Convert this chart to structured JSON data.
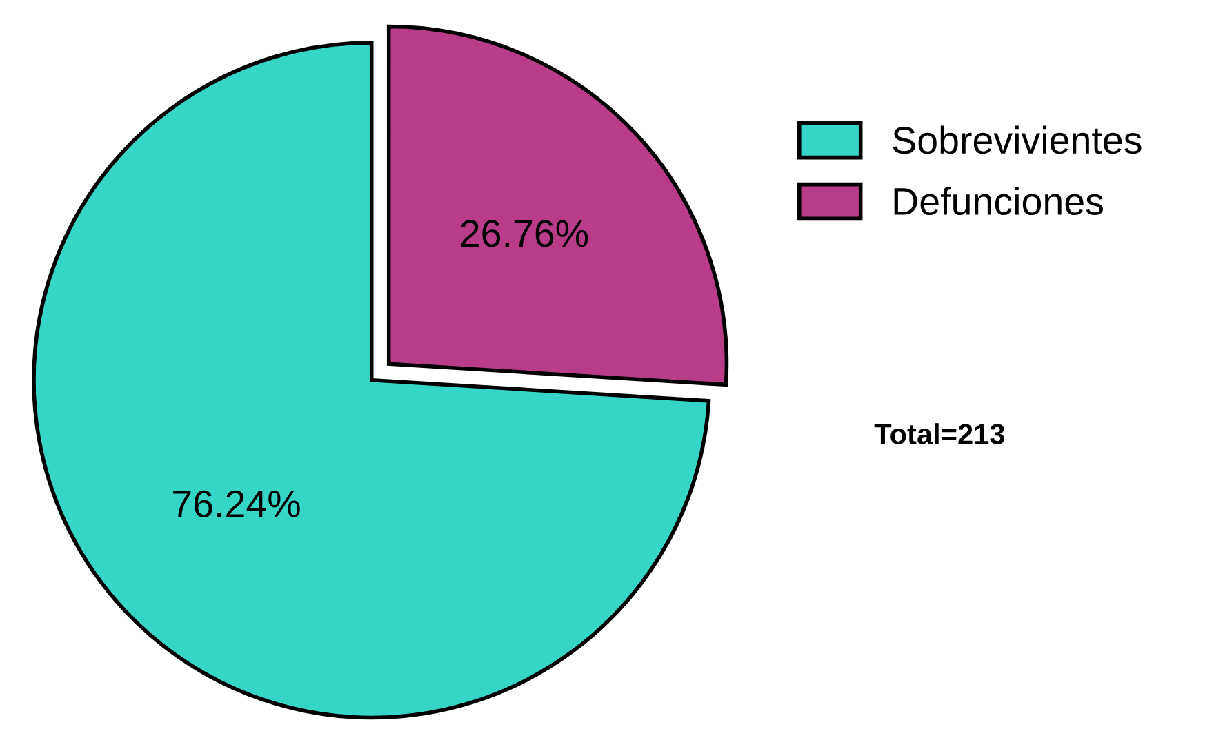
{
  "chart_data": {
    "type": "pie",
    "categories": [
      "Sobrevivientes",
      "Defunciones"
    ],
    "values": [
      76.24,
      26.76
    ],
    "colors": [
      "#35d6c8",
      "#b83c88"
    ],
    "value_labels": [
      "76.24%",
      "26.76%"
    ],
    "legend": "top right",
    "annotations": [
      "Total=213"
    ]
  }
}
